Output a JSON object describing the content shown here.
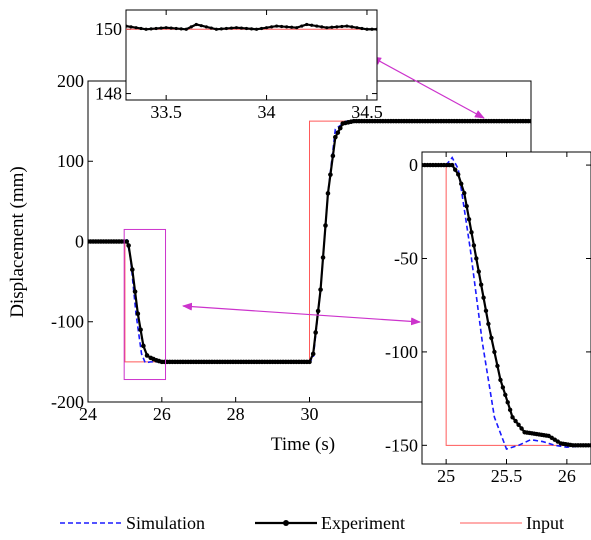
{
  "chart_data": [
    {
      "panel": "main",
      "type": "line",
      "xlabel": "Time (s)",
      "ylabel": "Displacement (mm)",
      "xlim": [
        24,
        36
      ],
      "ylim": [
        -200,
        200
      ],
      "xticks": [
        "24",
        "26",
        "28",
        "30"
      ],
      "yticks": [
        "200",
        "100",
        "0",
        "-100",
        "-200"
      ],
      "series": [
        {
          "name": "Input",
          "color": "#ff5a5a",
          "style": "solid",
          "x": [
            24,
            25,
            25,
            30,
            30,
            36
          ],
          "y": [
            0,
            0,
            -150,
            -150,
            150,
            150
          ]
        },
        {
          "name": "Simulation",
          "color": "#1a1aff",
          "style": "dashed",
          "x": [
            24,
            25.0,
            25.05,
            25.15,
            25.3,
            25.45,
            25.55,
            25.7,
            30.0,
            30.1,
            30.3,
            30.5,
            30.7,
            31.0,
            36
          ],
          "y": [
            0,
            0,
            3,
            -20,
            -90,
            -140,
            -151,
            -150,
            -150,
            -145,
            -60,
            60,
            140,
            150,
            150
          ]
        },
        {
          "name": "Experiment",
          "color": "#000000",
          "style": "solid-dots",
          "x": [
            24,
            25.05,
            25.1,
            25.2,
            25.35,
            25.5,
            25.6,
            25.7,
            25.85,
            26.0,
            30.0,
            30.1,
            30.3,
            30.5,
            30.7,
            30.9,
            31.2,
            36
          ],
          "y": [
            0,
            0,
            -5,
            -35,
            -90,
            -130,
            -142,
            -145,
            -148,
            -150,
            -150,
            -140,
            -60,
            60,
            130,
            147,
            150,
            150
          ]
        }
      ]
    },
    {
      "panel": "inset-top",
      "type": "line",
      "xlim": [
        33.3,
        34.55
      ],
      "ylim": [
        147.8,
        150.6
      ],
      "xticks": [
        "33.5",
        "34",
        "34.5"
      ],
      "yticks": [
        "150",
        "148"
      ],
      "series": [
        {
          "name": "Input",
          "x": [
            33.3,
            34.55
          ],
          "y": [
            150,
            150
          ]
        },
        {
          "name": "Experiment",
          "x": [
            33.3,
            33.4,
            33.5,
            33.6,
            33.65,
            33.75,
            33.85,
            33.95,
            34.05,
            34.15,
            34.2,
            34.3,
            34.4,
            34.5,
            34.55
          ],
          "y": [
            150.1,
            150.0,
            150.05,
            150.0,
            150.15,
            150.0,
            150.05,
            150.0,
            150.1,
            150.05,
            150.15,
            150.05,
            150.1,
            150.0,
            150.0
          ]
        }
      ]
    },
    {
      "panel": "inset-right",
      "type": "line",
      "xlim": [
        24.8,
        26.2
      ],
      "ylim": [
        -160,
        7
      ],
      "xticks": [
        "25",
        "25.5",
        "26"
      ],
      "yticks": [
        "0",
        "-50",
        "-100",
        "-150"
      ],
      "series": [
        {
          "name": "Input",
          "x": [
            24.8,
            25.0,
            25.0,
            26.2
          ],
          "y": [
            0,
            0,
            -150,
            -150
          ]
        },
        {
          "name": "Simulation",
          "x": [
            24.8,
            25.0,
            25.05,
            25.1,
            25.2,
            25.3,
            25.4,
            25.5,
            25.6,
            25.7,
            25.8,
            25.9,
            26.0,
            26.2
          ],
          "y": [
            0,
            0,
            4,
            -2,
            -45,
            -95,
            -135,
            -152,
            -150,
            -147,
            -148,
            -150,
            -151,
            -150
          ]
        },
        {
          "name": "Experiment",
          "x": [
            24.8,
            25.05,
            25.1,
            25.15,
            25.25,
            25.35,
            25.45,
            25.55,
            25.65,
            25.75,
            25.85,
            25.95,
            26.05,
            26.2
          ],
          "y": [
            0,
            0,
            -5,
            -15,
            -50,
            -85,
            -115,
            -135,
            -143,
            -144,
            -145,
            -149,
            -150,
            -150
          ]
        }
      ]
    }
  ],
  "legend": {
    "placement": "bottom",
    "items": [
      {
        "label": "Simulation",
        "color": "#1a1aff",
        "style": "dashed"
      },
      {
        "label": "Experiment",
        "color": "#000000",
        "style": "solid-dots"
      },
      {
        "label": "Input",
        "color": "#ff5a5a",
        "style": "solid"
      }
    ]
  },
  "colors": {
    "annotation": "#cc33cc"
  }
}
